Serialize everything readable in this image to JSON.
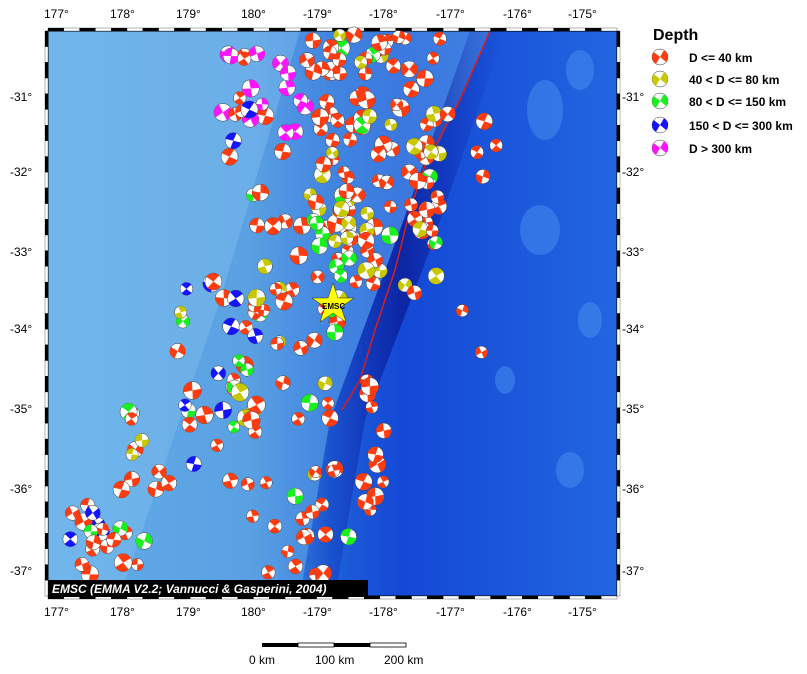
{
  "map": {
    "lon_ticks": [
      "177°",
      "178°",
      "179°",
      "180°",
      "-179°",
      "-178°",
      "-177°",
      "-176°",
      "-175°"
    ],
    "lat_ticks": [
      "-31°",
      "-32°",
      "-33°",
      "-34°",
      "-35°",
      "-36°",
      "-37°"
    ],
    "credit": "EMSC (EMMA V2.2; Vannucci & Gasperini, 2004)",
    "marker_label": "EMSC",
    "trench_color": "#d81e1e"
  },
  "legend": {
    "title": "Depth",
    "items": [
      {
        "label": "D <= 40 km",
        "color": "#ff3b10"
      },
      {
        "label": "40 < D <= 80 km",
        "color": "#c8c800"
      },
      {
        "label": "80 < D <= 150 km",
        "color": "#19f01e"
      },
      {
        "label": "150 < D <= 300 km",
        "color": "#1414ff"
      },
      {
        "label": "D > 300 km",
        "color": "#ff14ff"
      }
    ]
  },
  "scale": {
    "labels": [
      "0 km",
      "100 km",
      "200 km"
    ]
  }
}
